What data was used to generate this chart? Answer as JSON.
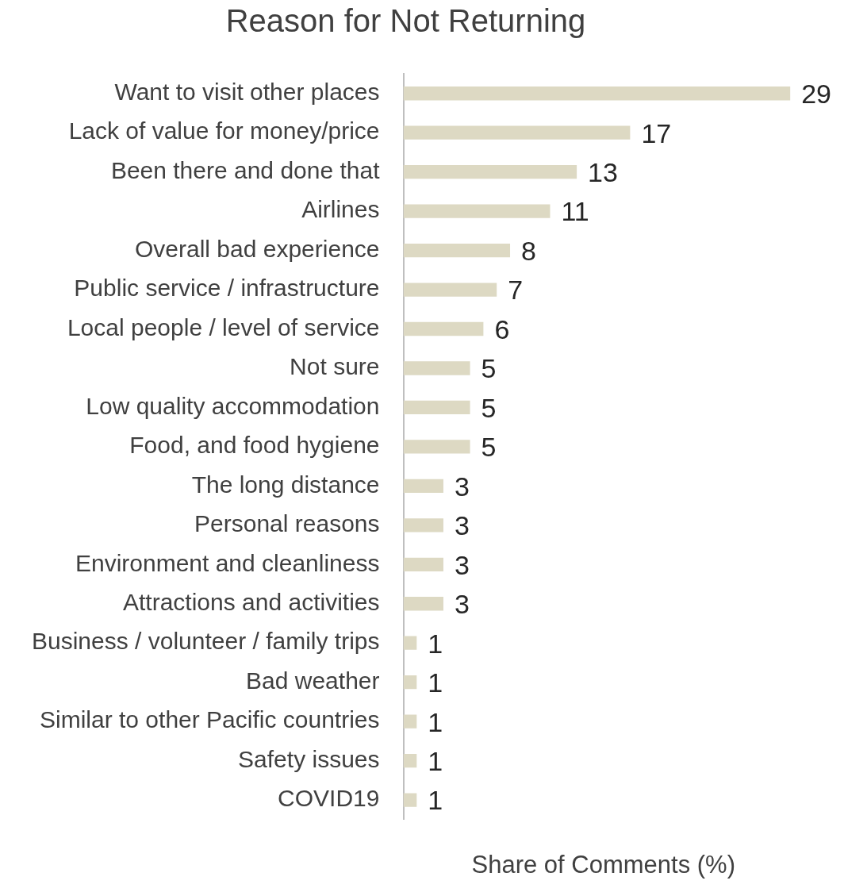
{
  "chart_data": {
    "type": "bar",
    "title": "Reason for Not Returning",
    "xlabel": "Share of Comments (%)",
    "orientation": "horizontal",
    "categories": [
      "Want to visit other places",
      "Lack of value for money/price",
      "Been there and done that",
      "Airlines",
      "Overall bad experience",
      "Public service / infrastructure",
      "Local people / level of service",
      "Not sure",
      "Low quality accommodation",
      "Food, and food hygiene",
      "The long distance",
      "Personal reasons",
      "Environment and cleanliness",
      "Attractions and activities",
      "Business / volunteer / family trips",
      "Bad weather",
      "Similar to other Pacific countries",
      "Safety issues",
      "COVID19"
    ],
    "values": [
      29,
      17,
      13,
      11,
      8,
      7,
      6,
      5,
      5,
      5,
      3,
      3,
      3,
      3,
      1,
      1,
      1,
      1,
      1
    ],
    "color": "#ddd9c3",
    "data_labels": true,
    "grid": false,
    "legend": false
  }
}
